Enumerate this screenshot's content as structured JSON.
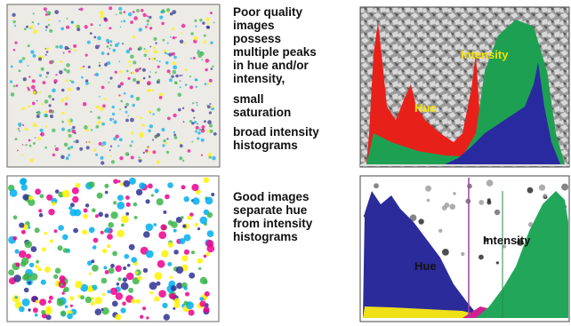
{
  "panels": [
    {
      "text_lines": [
        "Poor quality",
        "images",
        "possess",
        "multiple peaks",
        "in hue and/or",
        "intensity,",
        "small",
        "saturation",
        "broad intensity",
        "histograms"
      ],
      "histogram_labels": [
        "Intensity",
        "Hue"
      ]
    },
    {
      "text_lines": [
        "Good images",
        "separate hue",
        "from intensity",
        "histograms"
      ],
      "histogram_labels": [
        "Intensity",
        "Hue"
      ]
    }
  ]
}
